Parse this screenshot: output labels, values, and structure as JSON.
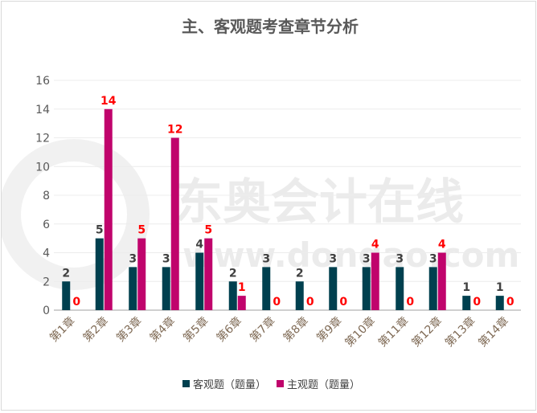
{
  "chart_data": {
    "type": "bar",
    "title": "主、客观题考查章节分析",
    "categories": [
      "第1章",
      "第2章",
      "第3章",
      "第4章",
      "第5章",
      "第6章",
      "第7章",
      "第8章",
      "第9章",
      "第10章",
      "第11章",
      "第12章",
      "第13章",
      "第14章"
    ],
    "series": [
      {
        "name": "客观题（题量）",
        "color": "#00404f",
        "label_color": "#404040",
        "values": [
          2,
          5,
          3,
          3,
          4,
          2,
          3,
          2,
          3,
          3,
          3,
          3,
          1,
          1
        ]
      },
      {
        "name": "主观题（题量）",
        "color": "#c0046c",
        "label_color": "#ff0000",
        "values": [
          0,
          14,
          5,
          12,
          5,
          1,
          0,
          0,
          0,
          4,
          0,
          4,
          0,
          0
        ]
      }
    ],
    "ylim": [
      0,
      16
    ],
    "yticks": [
      "0",
      "2",
      "4",
      "6",
      "8",
      "10",
      "12",
      "14",
      "16"
    ],
    "grid": true,
    "legend": "bottom"
  },
  "watermark": {
    "brand": "东奥会计在线",
    "url": "www.dongao.com"
  }
}
